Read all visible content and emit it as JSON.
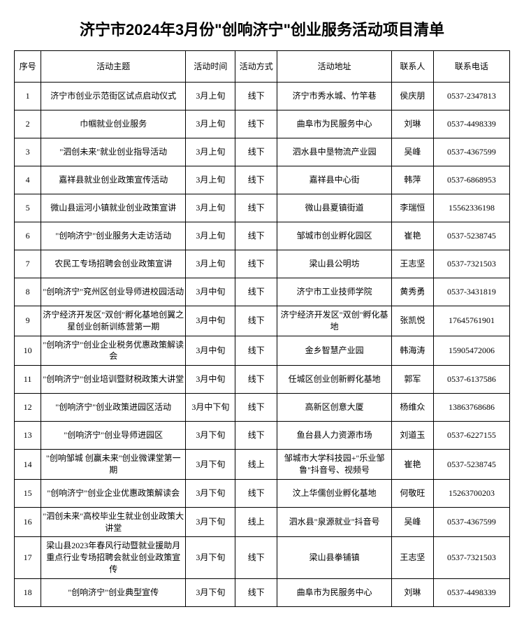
{
  "title": "济宁市2024年3月份\"创响济宁\"创业服务活动项目清单",
  "headers": {
    "seq": "序号",
    "theme": "活动主题",
    "time": "活动时间",
    "mode": "活动方式",
    "addr": "活动地址",
    "contact": "联系人",
    "phone": "联系电话"
  },
  "rows": [
    {
      "seq": "1",
      "theme": "济宁市创业示范街区试点启动仪式",
      "time": "3月上旬",
      "mode": "线下",
      "addr": "济宁市秀水城、竹竿巷",
      "contact": "侯庆朋",
      "phone": "0537-2347813"
    },
    {
      "seq": "2",
      "theme": "巾帼就业创业服务",
      "time": "3月上旬",
      "mode": "线下",
      "addr": "曲阜市为民服务中心",
      "contact": "刘琳",
      "phone": "0537-4498339"
    },
    {
      "seq": "3",
      "theme": "\"泗创未来\"就业创业指导活动",
      "time": "3月上旬",
      "mode": "线下",
      "addr": "泗水县中垦物流产业园",
      "contact": "吴峰",
      "phone": "0537-4367599"
    },
    {
      "seq": "4",
      "theme": "嘉祥县就业创业政策宣传活动",
      "time": "3月上旬",
      "mode": "线下",
      "addr": "嘉祥县中心街",
      "contact": "韩萍",
      "phone": "0537-6868953"
    },
    {
      "seq": "5",
      "theme": "微山县运河小镇就业创业政策宣讲",
      "time": "3月上旬",
      "mode": "线下",
      "addr": "微山县夏镇街道",
      "contact": "李瑞恒",
      "phone": "15562336198"
    },
    {
      "seq": "6",
      "theme": "\"创响济宁\"创业服务大走访活动",
      "time": "3月上旬",
      "mode": "线下",
      "addr": "邹城市创业孵化园区",
      "contact": "崔艳",
      "phone": "0537-5238745"
    },
    {
      "seq": "7",
      "theme": "农民工专场招聘会创业政策宣讲",
      "time": "3月上旬",
      "mode": "线下",
      "addr": "梁山县公明坊",
      "contact": "王志坚",
      "phone": "0537-7321503"
    },
    {
      "seq": "8",
      "theme": "\"创响济宁\"兖州区创业导师进校园活动",
      "time": "3月中旬",
      "mode": "线下",
      "addr": "济宁市工业技师学院",
      "contact": "黄秀勇",
      "phone": "0537-3431819"
    },
    {
      "seq": "9",
      "theme": "济宁经济开发区\"双创\"孵化基地创翼之星创业创新训练营第一期",
      "time": "3月中旬",
      "mode": "线下",
      "addr": "济宁经济开发区\"双创\"孵化基地",
      "contact": "张凯悦",
      "phone": "17645761901"
    },
    {
      "seq": "10",
      "theme": "\"创响济宁\"创业企业税务优惠政策解读会",
      "time": "3月中旬",
      "mode": "线下",
      "addr": "金乡智慧产业园",
      "contact": "韩海涛",
      "phone": "15905472006"
    },
    {
      "seq": "11",
      "theme": "\"创响济宁\"创业培训暨财税政策大讲堂",
      "time": "3月中旬",
      "mode": "线下",
      "addr": "任城区创业创新孵化基地",
      "contact": "郭军",
      "phone": "0537-6137586"
    },
    {
      "seq": "12",
      "theme": "\"创响济宁\"创业政策进园区活动",
      "time": "3月中下旬",
      "mode": "线下",
      "addr": "高新区创意大厦",
      "contact": "杨维众",
      "phone": "13863768686"
    },
    {
      "seq": "13",
      "theme": "\"创响济宁\"创业导师进园区",
      "time": "3月下旬",
      "mode": "线下",
      "addr": "鱼台县人力资源市场",
      "contact": "刘道玉",
      "phone": "0537-6227155"
    },
    {
      "seq": "14",
      "theme": "\"创响邹城 创赢未来\"创业微课堂第一期",
      "time": "3月下旬",
      "mode": "线上",
      "addr": "邹城市大学科技园+\"乐业邹鲁\"抖音号、视频号",
      "contact": "崔艳",
      "phone": "0537-5238745"
    },
    {
      "seq": "15",
      "theme": "\"创响济宁\"创业企业优惠政策解读会",
      "time": "3月下旬",
      "mode": "线下",
      "addr": "汶上华儒创业孵化基地",
      "contact": "何敬旺",
      "phone": "15263700203"
    },
    {
      "seq": "16",
      "theme": "\"泗创未来\"高校毕业生就业创业政策大讲堂",
      "time": "3月下旬",
      "mode": "线上",
      "addr": "泗水县\"泉源就业\"抖音号",
      "contact": "吴峰",
      "phone": "0537-4367599"
    },
    {
      "seq": "17",
      "theme": "梁山县2023年春风行动暨就业援助月重点行业专场招聘会就业创业政策宣传",
      "time": "3月下旬",
      "mode": "线下",
      "addr": "梁山县拳铺镇",
      "contact": "王志坚",
      "phone": "0537-7321503"
    },
    {
      "seq": "18",
      "theme": "\"创响济宁\"创业典型宣传",
      "time": "3月下旬",
      "mode": "线下",
      "addr": "曲阜市为民服务中心",
      "contact": "刘琳",
      "phone": "0537-4498339"
    }
  ]
}
